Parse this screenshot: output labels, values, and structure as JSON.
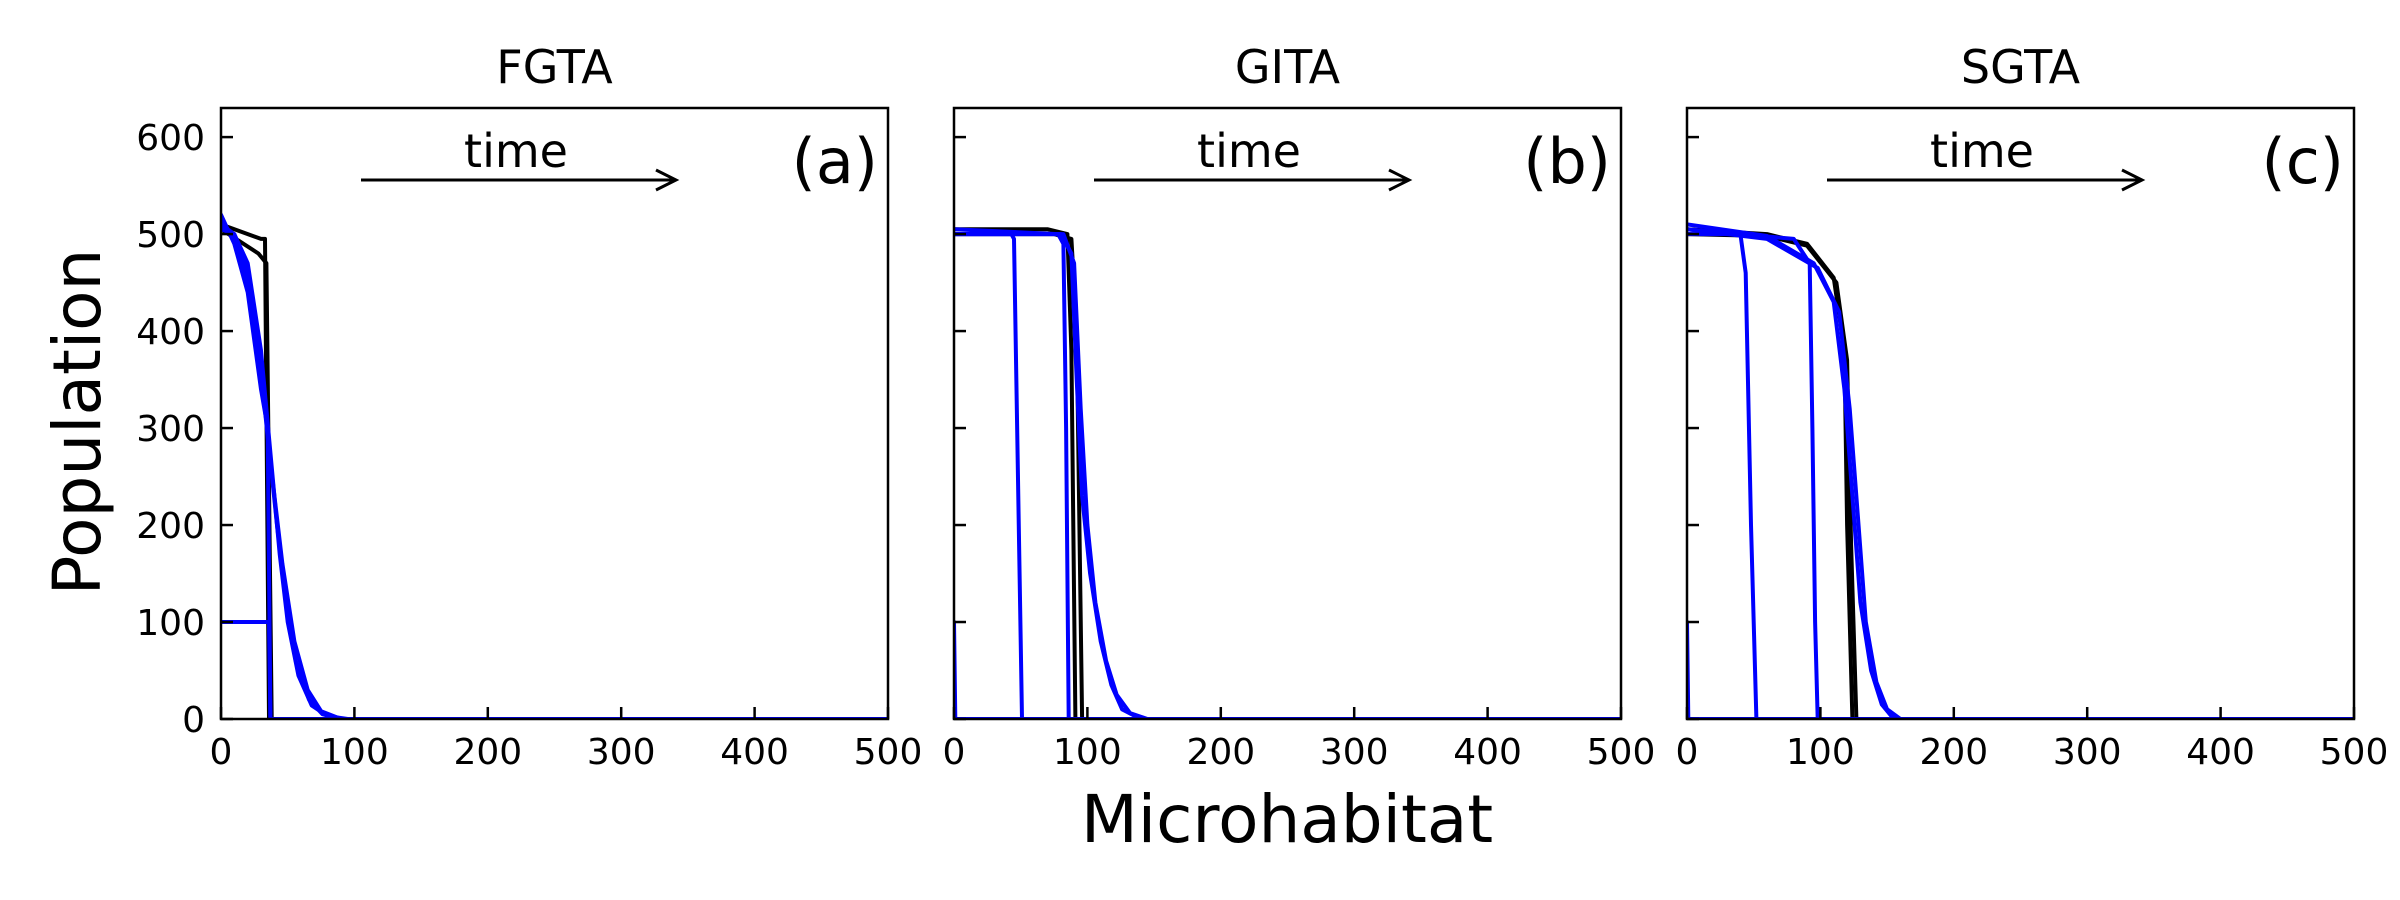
{
  "figure": {
    "ylabel": "Population",
    "xlabel": "Microhabitat"
  },
  "chart_data": [
    {
      "type": "line",
      "title": "FGTA",
      "panel_label": "(a)",
      "annotation": "time",
      "xlim": [
        0,
        500
      ],
      "ylim": [
        0,
        630
      ],
      "xticks": [
        0,
        100,
        200,
        300,
        400,
        500
      ],
      "yticks": [
        0,
        100,
        200,
        300,
        400,
        500,
        600
      ],
      "ytick_labels_shown": true,
      "colors": {
        "early": "#000000",
        "late": "#0000ff"
      },
      "series": [
        {
          "color": "#000000",
          "x": [
            0,
            30,
            33,
            36,
            500
          ],
          "y": [
            510,
            495,
            495,
            0,
            0
          ]
        },
        {
          "color": "#000000",
          "x": [
            0,
            28,
            34,
            38,
            500
          ],
          "y": [
            505,
            480,
            470,
            0,
            0
          ]
        },
        {
          "color": "#0000ff",
          "x": [
            0,
            36,
            37,
            500
          ],
          "y": [
            100,
            100,
            0,
            0
          ]
        },
        {
          "color": "#0000ff",
          "x": [
            0,
            10,
            20,
            30,
            35,
            37,
            500
          ],
          "y": [
            520,
            490,
            440,
            340,
            300,
            0,
            0
          ]
        },
        {
          "color": "#0000ff",
          "x": [
            0,
            10,
            20,
            30,
            35,
            40,
            46,
            55,
            65,
            75,
            90,
            500
          ],
          "y": [
            515,
            495,
            450,
            360,
            290,
            230,
            160,
            80,
            30,
            8,
            0,
            0
          ]
        },
        {
          "color": "#0000ff",
          "x": [
            0,
            10,
            20,
            30,
            36,
            42,
            48,
            56,
            66,
            76,
            90,
            500
          ],
          "y": [
            510,
            500,
            460,
            370,
            280,
            200,
            130,
            60,
            20,
            5,
            0,
            0
          ]
        },
        {
          "color": "#0000ff",
          "x": [
            0,
            10,
            20,
            30,
            38,
            44,
            50,
            58,
            68,
            80,
            95,
            500
          ],
          "y": [
            505,
            500,
            470,
            380,
            260,
            170,
            100,
            45,
            14,
            3,
            0,
            0
          ]
        }
      ]
    },
    {
      "type": "line",
      "title": "GITA",
      "panel_label": "(b)",
      "annotation": "time",
      "xlim": [
        0,
        500
      ],
      "ylim": [
        0,
        630
      ],
      "xticks": [
        0,
        100,
        200,
        300,
        400,
        500
      ],
      "yticks": [
        0,
        100,
        200,
        300,
        400,
        500,
        600
      ],
      "ytick_labels_shown": false,
      "colors": {
        "early": "#000000",
        "late": "#0000ff"
      },
      "series": [
        {
          "color": "#000000",
          "x": [
            0,
            70,
            85,
            88,
            91,
            500
          ],
          "y": [
            505,
            505,
            500,
            380,
            0,
            0
          ]
        },
        {
          "color": "#000000",
          "x": [
            0,
            75,
            88,
            92,
            96,
            500
          ],
          "y": [
            500,
            500,
            495,
            400,
            0,
            0
          ]
        },
        {
          "color": "#0000ff",
          "x": [
            0,
            1,
            500
          ],
          "y": [
            100,
            0,
            0
          ]
        },
        {
          "color": "#0000ff",
          "x": [
            0,
            43,
            45,
            51,
            500
          ],
          "y": [
            500,
            500,
            495,
            0,
            0
          ]
        },
        {
          "color": "#0000ff",
          "x": [
            0,
            78,
            82,
            84,
            86,
            500
          ],
          "y": [
            505,
            500,
            490,
            300,
            0,
            0
          ]
        },
        {
          "color": "#0000ff",
          "x": [
            0,
            80,
            88,
            92,
            96,
            102,
            110,
            118,
            126,
            140,
            500
          ],
          "y": [
            500,
            500,
            480,
            350,
            230,
            150,
            80,
            35,
            10,
            0,
            0
          ]
        },
        {
          "color": "#0000ff",
          "x": [
            0,
            82,
            90,
            95,
            100,
            106,
            114,
            122,
            132,
            145,
            500
          ],
          "y": [
            500,
            500,
            470,
            320,
            200,
            120,
            60,
            25,
            6,
            0,
            0
          ]
        }
      ]
    },
    {
      "type": "line",
      "title": "SGTA",
      "panel_label": "(c)",
      "annotation": "time",
      "xlim": [
        0,
        500
      ],
      "ylim": [
        0,
        630
      ],
      "xticks": [
        0,
        100,
        200,
        300,
        400,
        500
      ],
      "yticks": [
        0,
        100,
        200,
        300,
        400,
        500,
        600
      ],
      "ytick_labels_shown": false,
      "colors": {
        "early": "#000000",
        "late": "#0000ff"
      },
      "series": [
        {
          "color": "#000000",
          "x": [
            0,
            60,
            90,
            110,
            118,
            120,
            124,
            500
          ],
          "y": [
            505,
            500,
            490,
            455,
            380,
            200,
            0,
            0
          ]
        },
        {
          "color": "#000000",
          "x": [
            0,
            60,
            90,
            112,
            120,
            123,
            127,
            500
          ],
          "y": [
            500,
            498,
            488,
            450,
            370,
            180,
            0,
            0
          ]
        },
        {
          "color": "#0000ff",
          "x": [
            0,
            1,
            500
          ],
          "y": [
            100,
            0,
            0
          ]
        },
        {
          "color": "#0000ff",
          "x": [
            0,
            40,
            44,
            48,
            52,
            500
          ],
          "y": [
            500,
            500,
            460,
            200,
            0,
            0
          ]
        },
        {
          "color": "#0000ff",
          "x": [
            0,
            80,
            92,
            94,
            96,
            98,
            500
          ],
          "y": [
            505,
            495,
            470,
            300,
            100,
            0,
            0
          ]
        },
        {
          "color": "#0000ff",
          "x": [
            0,
            60,
            95,
            110,
            118,
            124,
            130,
            138,
            146,
            155,
            500
          ],
          "y": [
            510,
            498,
            470,
            430,
            340,
            230,
            120,
            50,
            15,
            0,
            0
          ]
        },
        {
          "color": "#0000ff",
          "x": [
            0,
            60,
            98,
            114,
            122,
            128,
            134,
            142,
            150,
            160,
            500
          ],
          "y": [
            505,
            495,
            465,
            420,
            320,
            210,
            100,
            38,
            10,
            0,
            0
          ]
        }
      ]
    }
  ]
}
